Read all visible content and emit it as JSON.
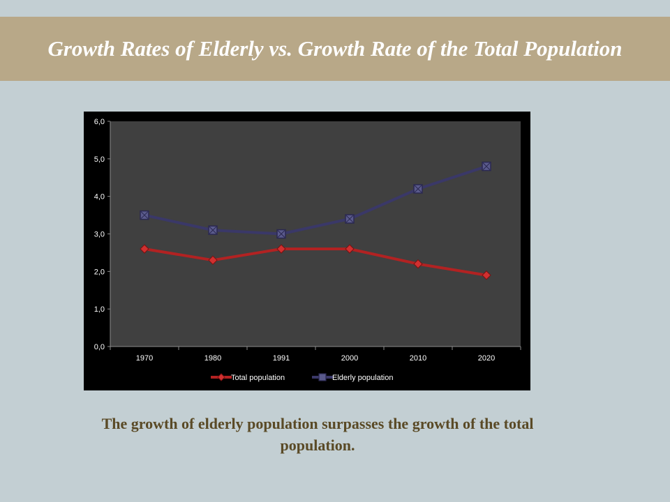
{
  "slide": {
    "title": "Growth Rates of Elderly vs. Growth Rate of the Total Population",
    "caption": "The growth of elderly population surpasses the growth of the total population."
  },
  "colors": {
    "background": "#c3cfd3",
    "title_band": "#b8a888",
    "title_text": "#ffffff",
    "caption_text": "#5a4a26",
    "chart_bg": "#000000",
    "plot_bg": "#404040",
    "total_population": "#b22222",
    "elderly_population": "#3a3868"
  },
  "chart_data": {
    "type": "line",
    "categories": [
      "1970",
      "1980",
      "1991",
      "2000",
      "2010",
      "2020"
    ],
    "series": [
      {
        "name": "Total population",
        "values": [
          2.6,
          2.3,
          2.6,
          2.6,
          2.2,
          1.9
        ],
        "marker": "diamond",
        "color": "#b22222"
      },
      {
        "name": "Elderly population",
        "values": [
          3.5,
          3.1,
          3.0,
          3.4,
          4.2,
          4.8
        ],
        "marker": "square",
        "color": "#3a3868"
      }
    ],
    "yticks": [
      "0,0",
      "1,0",
      "2,0",
      "3,0",
      "4,0",
      "5,0",
      "6,0"
    ],
    "ylim": [
      0,
      6
    ],
    "grid": false,
    "legend": "bottom"
  }
}
